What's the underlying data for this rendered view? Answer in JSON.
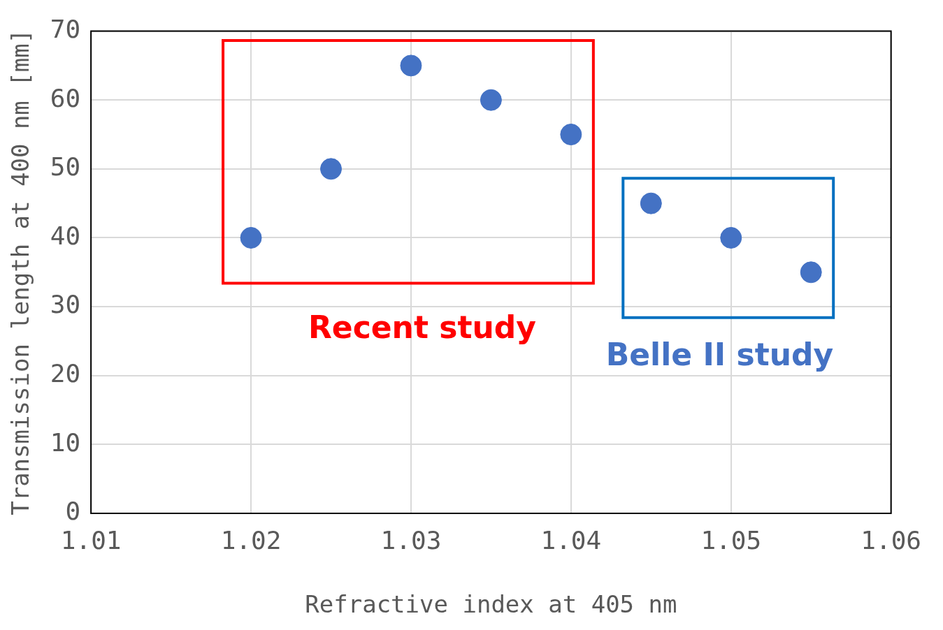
{
  "chart_data": {
    "type": "scatter",
    "xlabel": "Refractive index at 405 nm",
    "ylabel": "Transmission length at 400 nm [mm]",
    "series": [
      {
        "name": "Recent study",
        "color": "#4472c4",
        "x": [
          1.02,
          1.025,
          1.03,
          1.035,
          1.04
        ],
        "values": [
          40,
          50,
          65,
          60,
          55
        ]
      },
      {
        "name": "Belle II study",
        "color": "#4472c4",
        "x": [
          1.045,
          1.05,
          1.055
        ],
        "values": [
          45,
          40,
          35
        ]
      }
    ],
    "xlim": [
      1.01,
      1.06
    ],
    "xticks": [
      1.01,
      1.02,
      1.03,
      1.04,
      1.05,
      1.06
    ],
    "ylim": [
      0,
      70
    ],
    "yticks": [
      0,
      10,
      20,
      30,
      40,
      50,
      60,
      70
    ],
    "grid": true,
    "legend": false,
    "marker": "circle"
  }
}
